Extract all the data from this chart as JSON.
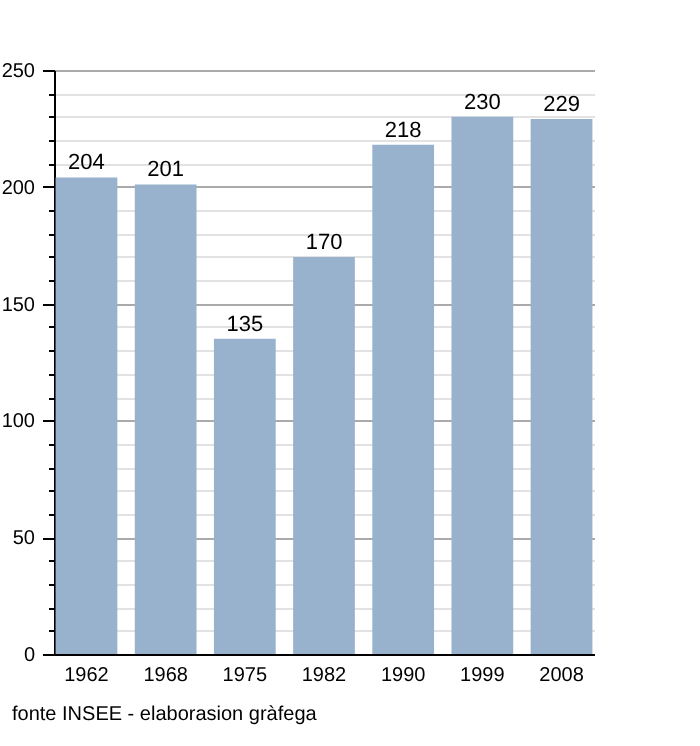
{
  "chart_data": {
    "type": "bar",
    "categories": [
      "1962",
      "1968",
      "1975",
      "1982",
      "1990",
      "1999",
      "2008"
    ],
    "values": [
      204,
      201,
      135,
      170,
      218,
      230,
      229
    ],
    "color": "#98b2cd",
    "ylim": [
      0,
      250
    ],
    "yticks": [
      0,
      {
        "value": 10,
        "label": null
      },
      {
        "value": 20,
        "label": null
      },
      {
        "value": 30,
        "label": null
      },
      {
        "value": 40,
        "label": null
      },
      50,
      {
        "value": 60,
        "label": null
      },
      {
        "value": 70,
        "label": null
      },
      {
        "value": 80,
        "label": null
      },
      {
        "value": 90,
        "label": null
      },
      100,
      {
        "value": 110,
        "label": null
      },
      {
        "value": 120,
        "label": null
      },
      {
        "value": 130,
        "label": null
      },
      {
        "value": 140,
        "label": null
      },
      150,
      {
        "value": 160,
        "label": null
      },
      {
        "value": 170,
        "label": null
      },
      {
        "value": 180,
        "label": null
      },
      {
        "value": 190,
        "label": null
      },
      200,
      {
        "value": 210,
        "label": null
      },
      {
        "value": 220,
        "label": null
      },
      {
        "value": 230,
        "label": null
      },
      {
        "value": 240,
        "label": null
      },
      250
    ],
    "grid": true,
    "data_labels": true,
    "annotations": [
      "fonte INSEE - elaborasion gràfega"
    ]
  }
}
